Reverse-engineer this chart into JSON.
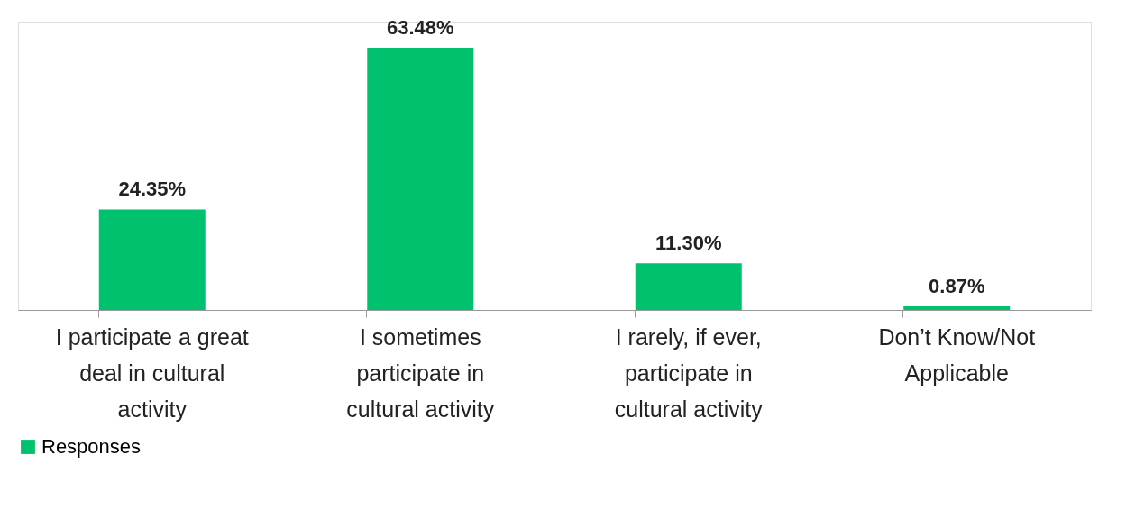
{
  "chart_data": {
    "type": "bar",
    "categories": [
      "I participate a great deal in cultural activity",
      "I sometimes participate in cultural activity",
      "I rarely, if ever, participate in cultural activity",
      "Don’t Know/Not Applicable"
    ],
    "series": [
      {
        "name": "Responses",
        "color": "#00c16e",
        "values": [
          24.35,
          63.48,
          11.3,
          0.87
        ],
        "value_labels": [
          "24.35%",
          "63.48%",
          "11.30%",
          "0.87%"
        ]
      }
    ],
    "legend": "bottom",
    "grid": false
  }
}
